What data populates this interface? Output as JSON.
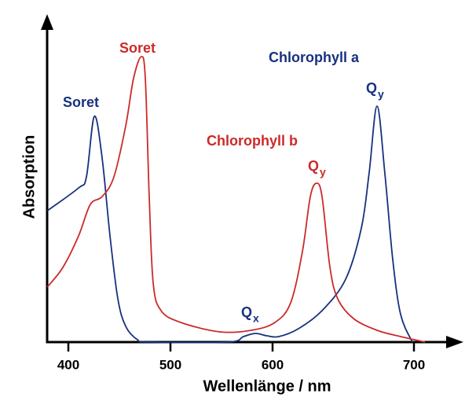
{
  "chart_data": {
    "type": "line",
    "xlabel": "Wellenlänge / nm",
    "ylabel": "Absorption",
    "xlim": [
      379,
      732
    ],
    "xticks": [
      400,
      500,
      600,
      700
    ],
    "ylim": [
      0,
      1
    ],
    "series": [
      {
        "name": "Chlorophyll a",
        "color": "#17317f",
        "x": [
          379.2,
          410,
          417.7,
          425.4,
          433,
          440.8,
          448.5,
          456.2,
          467.7,
          479.2,
          556.2,
          571.5,
          583.1,
          594.6,
          604.4,
          618.3,
          635,
          651.7,
          662.8,
          668.3,
          673.9,
          679.4,
          685,
          690.6,
          698.9
        ],
        "values": [
          0.4175,
          0.49,
          0.525,
          0.7175,
          0.5875,
          0.3375,
          0.1375,
          0.05,
          0.0075,
          0,
          0,
          0.0175,
          0.0275,
          0.02,
          0.0175,
          0.0425,
          0.1,
          0.2,
          0.3625,
          0.5375,
          0.75,
          0.5375,
          0.2625,
          0.0875,
          0
        ]
      },
      {
        "name": "Chlorophyll b",
        "color": "#cc2a2a",
        "x": [
          379.2,
          394.6,
          410,
          421.5,
          433.1,
          444.6,
          456.2,
          463.8,
          471.5,
          475.4,
          479.2,
          483.1,
          490.8,
          510,
          548.5,
          579.2,
          601.7,
          612.8,
          621.1,
          626.7,
          631.1,
          635,
          640.6,
          646.1,
          657.2,
          673.9,
          690.6,
          707.2
        ],
        "values": [
          0.175,
          0.2375,
          0.3375,
          0.4375,
          0.4625,
          0.525,
          0.6875,
          0.8375,
          0.9075,
          0.8375,
          0.4625,
          0.1875,
          0.1,
          0.0625,
          0.0325,
          0.0375,
          0.0625,
          0.125,
          0.2875,
          0.4625,
          0.505,
          0.4625,
          0.2375,
          0.1375,
          0.075,
          0.0375,
          0.0175,
          0
        ]
      }
    ],
    "annotations": [
      {
        "text": "Soret",
        "color": "#17317f"
      },
      {
        "text": "Soret",
        "color": "#cc2a2a"
      },
      {
        "text": "Q",
        "sub": "y",
        "color": "#17317f"
      },
      {
        "text": "Q",
        "sub": "y",
        "color": "#cc2a2a"
      },
      {
        "text": "Q",
        "sub": "x",
        "color": "#17317f"
      }
    ]
  }
}
